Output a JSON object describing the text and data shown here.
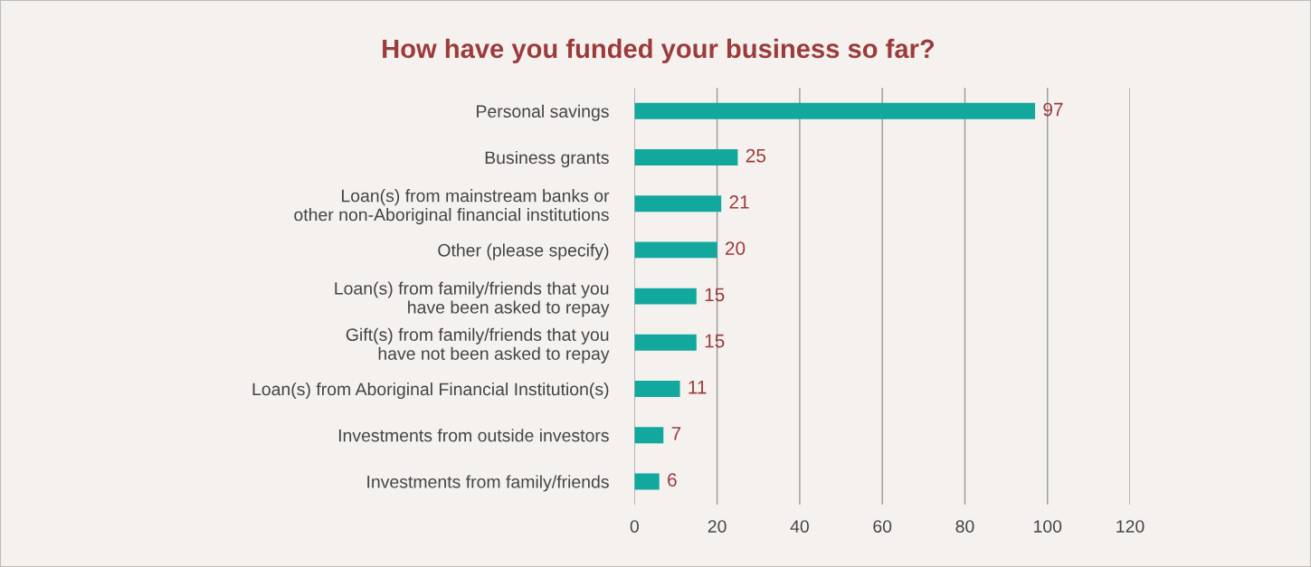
{
  "chart_data": {
    "type": "bar",
    "orientation": "horizontal",
    "title": "How have you funded your business so far?",
    "categories": [
      "Personal savings",
      "Business grants",
      "Loan(s) from mainstream banks or\nother non-Aboriginal financial institutions",
      "Other (please specify)",
      "Loan(s) from family/friends that you\nhave been asked to repay",
      "Gift(s) from family/friends that you\nhave not been asked to repay",
      "Loan(s) from Aboriginal Financial Institution(s)",
      "Investments from outside investors",
      "Investments from family/friends"
    ],
    "values": [
      97,
      25,
      21,
      20,
      15,
      15,
      11,
      7,
      6
    ],
    "color": "#12a89d",
    "xlim": [
      0,
      120
    ],
    "xticks": [
      0,
      20,
      40,
      60,
      80,
      100,
      120
    ],
    "grid": "x",
    "data_labels": true,
    "legend": false
  }
}
